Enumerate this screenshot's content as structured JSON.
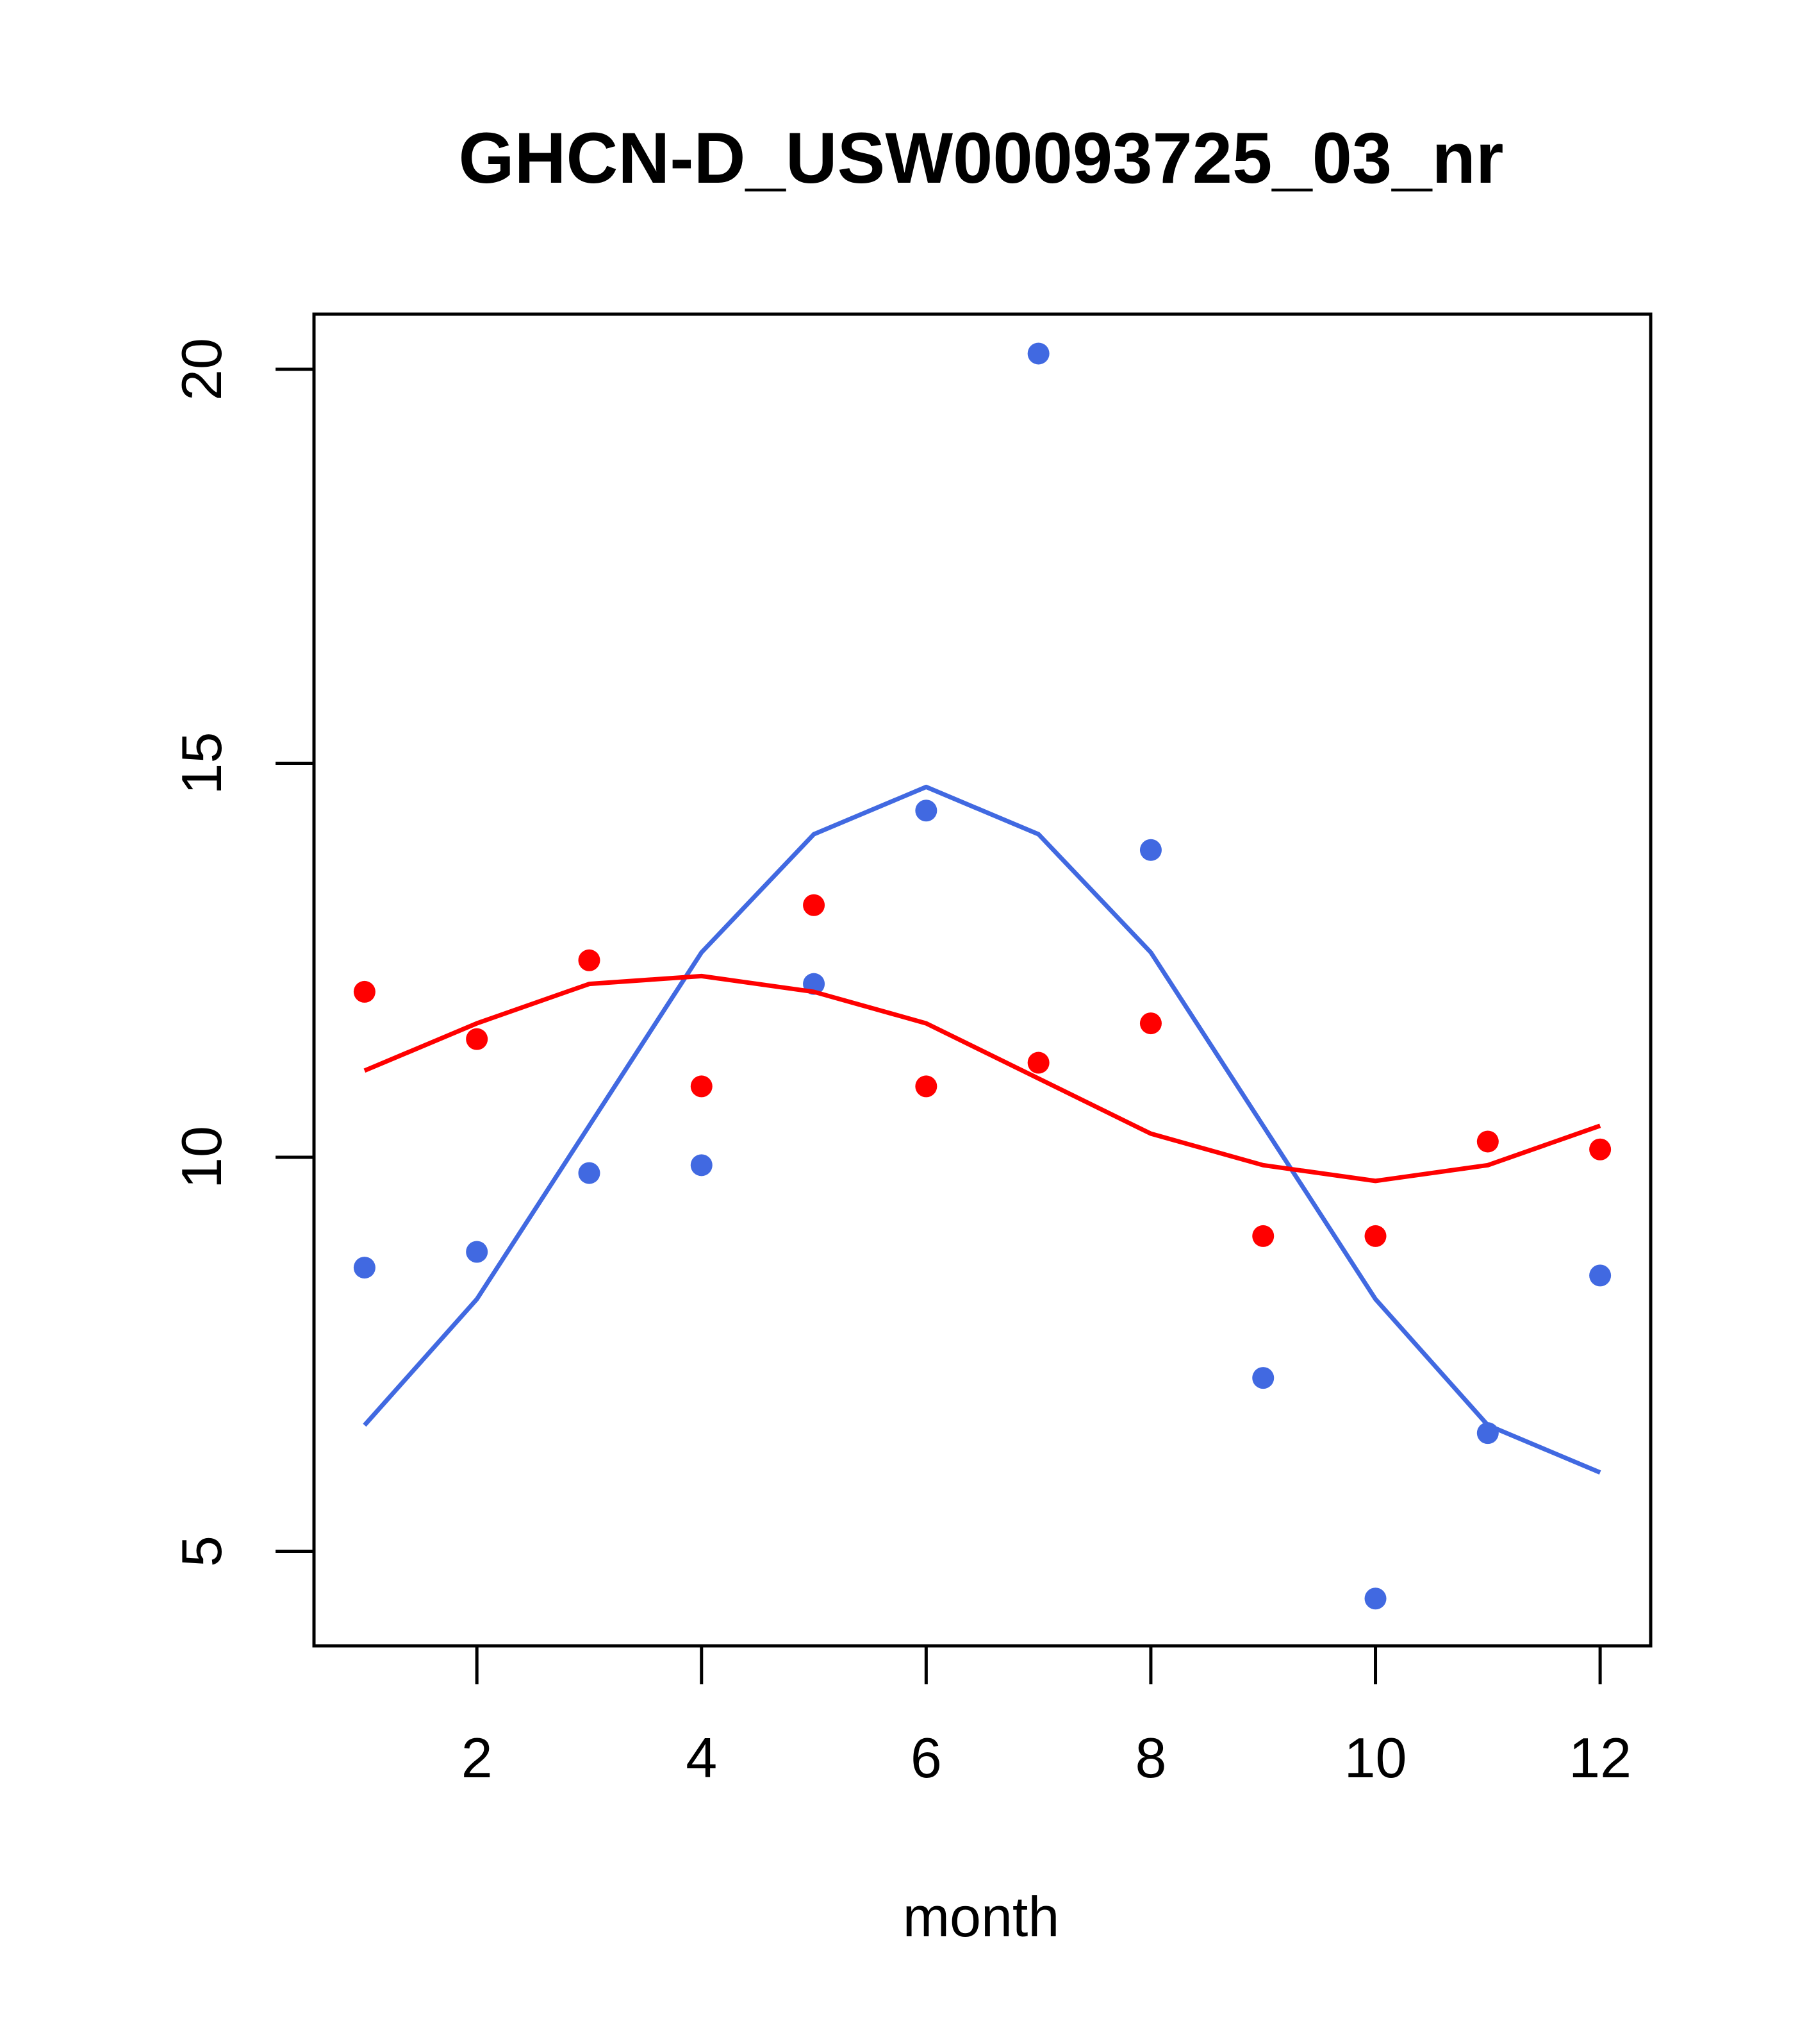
{
  "chart_data": {
    "type": "scatter",
    "title": "GHCN-D_USW00093725_03_nr",
    "xlabel": "month",
    "ylabel": "",
    "xlim": [
      0.55,
      12.45
    ],
    "ylim": [
      3.8,
      20.7
    ],
    "xticks": [
      2,
      4,
      6,
      8,
      10,
      12
    ],
    "yticks": [
      5,
      10,
      15,
      20
    ],
    "grid": false,
    "legend": "none",
    "series": [
      {
        "color": "#4169E1",
        "points": {
          "x": [
            1,
            2,
            3,
            4,
            5,
            6,
            7,
            8,
            9,
            10,
            11,
            12
          ],
          "y": [
            8.6,
            8.8,
            9.8,
            9.9,
            12.2,
            14.4,
            20.2,
            13.9,
            7.2,
            4.4,
            6.5,
            8.5
          ]
        },
        "line": {
          "x": [
            1,
            2,
            3,
            4,
            5,
            6,
            7,
            8,
            9,
            10,
            11,
            12
          ],
          "y": [
            6.6,
            8.2,
            10.4,
            12.6,
            14.1,
            14.7,
            14.1,
            12.6,
            10.4,
            8.2,
            6.6,
            6.0
          ]
        }
      },
      {
        "color": "#FF0000",
        "points": {
          "x": [
            1,
            2,
            3,
            4,
            5,
            6,
            7,
            8,
            9,
            10,
            11,
            12
          ],
          "y": [
            12.1,
            11.5,
            12.5,
            10.9,
            13.2,
            10.9,
            11.2,
            11.7,
            9.0,
            9.0,
            10.2,
            10.1
          ]
        },
        "line": {
          "x": [
            1,
            2,
            3,
            4,
            5,
            6,
            7,
            8,
            9,
            10,
            11,
            12
          ],
          "y": [
            11.1,
            11.7,
            12.2,
            12.3,
            12.1,
            11.7,
            11.0,
            10.3,
            9.9,
            9.7,
            9.9,
            10.4
          ]
        }
      }
    ]
  }
}
